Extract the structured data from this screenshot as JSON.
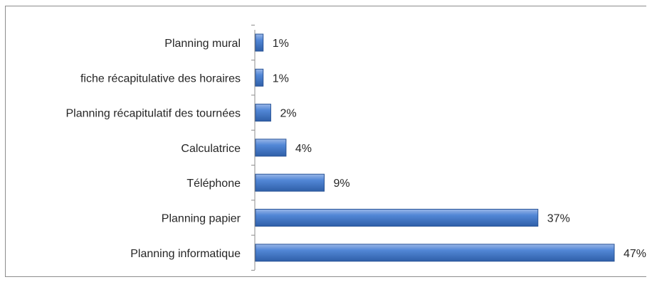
{
  "chart_data": {
    "type": "bar",
    "orientation": "horizontal",
    "categories": [
      "Planning mural",
      "fiche récapitulative des horaires",
      "Planning récapitulatif des tournées",
      "Calculatrice",
      "Téléphone",
      "Planning papier",
      "Planning informatique"
    ],
    "values": [
      1,
      1,
      2,
      4,
      9,
      37,
      47
    ],
    "value_labels": [
      "1%",
      "1%",
      "2%",
      "4%",
      "9%",
      "37%",
      "47%"
    ],
    "unit": "%",
    "xlim": [
      0,
      47
    ],
    "grid": false,
    "legend": "none",
    "bar_color": "#4a7bc8"
  }
}
